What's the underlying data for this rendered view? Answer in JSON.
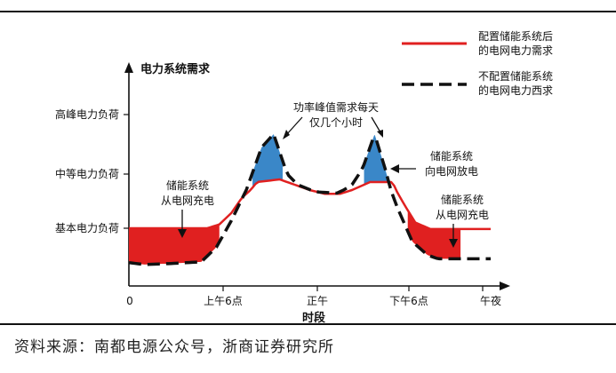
{
  "chart_data": {
    "type": "area",
    "ylabel": "电力系统需求",
    "xlabel": "时段",
    "x_ticks": [
      "0",
      "上午6点",
      "正午",
      "下午6点",
      "午夜"
    ],
    "y_ticks": [
      "基本电力负荷",
      "中等电力负荷",
      "高峰电力负荷"
    ],
    "series": [
      {
        "name": "配置储能系统后的电网电力需求",
        "color": "#e02020",
        "style": "solid",
        "points": [
          [
            0,
            1
          ],
          [
            5.2,
            1
          ],
          [
            6.0,
            1.1
          ],
          [
            6.8,
            1.4
          ],
          [
            7.5,
            1.8
          ],
          [
            8.5,
            2.15
          ],
          [
            10,
            2.2
          ],
          [
            11.5,
            2.05
          ],
          [
            13,
            1.9
          ],
          [
            14,
            1.9
          ],
          [
            15.2,
            2.05
          ],
          [
            16,
            2.15
          ],
          [
            17.5,
            2.15
          ],
          [
            18.3,
            1.6
          ],
          [
            19,
            1.15
          ],
          [
            20,
            0.98
          ],
          [
            21.5,
            0.98
          ],
          [
            24,
            0.98
          ]
        ]
      },
      {
        "name": "不配置储能系统的电网电力西求",
        "color": "#111111",
        "style": "dashed",
        "points": [
          [
            0,
            0.1
          ],
          [
            1,
            0.05
          ],
          [
            3,
            0.08
          ],
          [
            4.8,
            0.12
          ],
          [
            5.8,
            0.5
          ],
          [
            6.8,
            1.2
          ],
          [
            7.6,
            1.85
          ],
          [
            8.8,
            2.8
          ],
          [
            9.6,
            3.05
          ],
          [
            10.5,
            2.3
          ],
          [
            11.2,
            2.1
          ],
          [
            12.5,
            1.95
          ],
          [
            13.8,
            1.92
          ],
          [
            14.8,
            2.1
          ],
          [
            15.5,
            2.4
          ],
          [
            16.3,
            3.05
          ],
          [
            17.0,
            2.4
          ],
          [
            17.8,
            1.55
          ],
          [
            18.8,
            0.65
          ],
          [
            19.8,
            0.3
          ],
          [
            20.5,
            0.2
          ],
          [
            22,
            0.2
          ],
          [
            24,
            0.2
          ]
        ]
      }
    ],
    "regions": [
      {
        "label": "储能系统 从电网充电",
        "color": "#e02020",
        "x": [
          0,
          6
        ]
      },
      {
        "label": "储能系统 从电网充电",
        "color": "#e02020",
        "x": [
          18.5,
          22
        ]
      },
      {
        "label": "储能系统 向电网放电",
        "color": "#3a87c8"
      }
    ],
    "annotations": [
      {
        "text1": "功率峰值需求每天",
        "text2": "仅几个小时"
      },
      {
        "text1": "储能系统",
        "text2": "从电网充电"
      },
      {
        "text1": "储能系统",
        "text2": "向电网放电"
      },
      {
        "text1": "储能系统",
        "text2": "从电网充电"
      }
    ],
    "legend": [
      {
        "line1": "配置储能系统后",
        "line2": "的电网电力需求"
      },
      {
        "line1": "不配置储能系统",
        "line2": "的电网电力西求"
      }
    ],
    "legend_position": "top-right",
    "xlim": [
      0,
      24
    ],
    "ylim": [
      0,
      3.6
    ]
  },
  "source": "资料来源：南都电源公众号，浙商证券研究所"
}
